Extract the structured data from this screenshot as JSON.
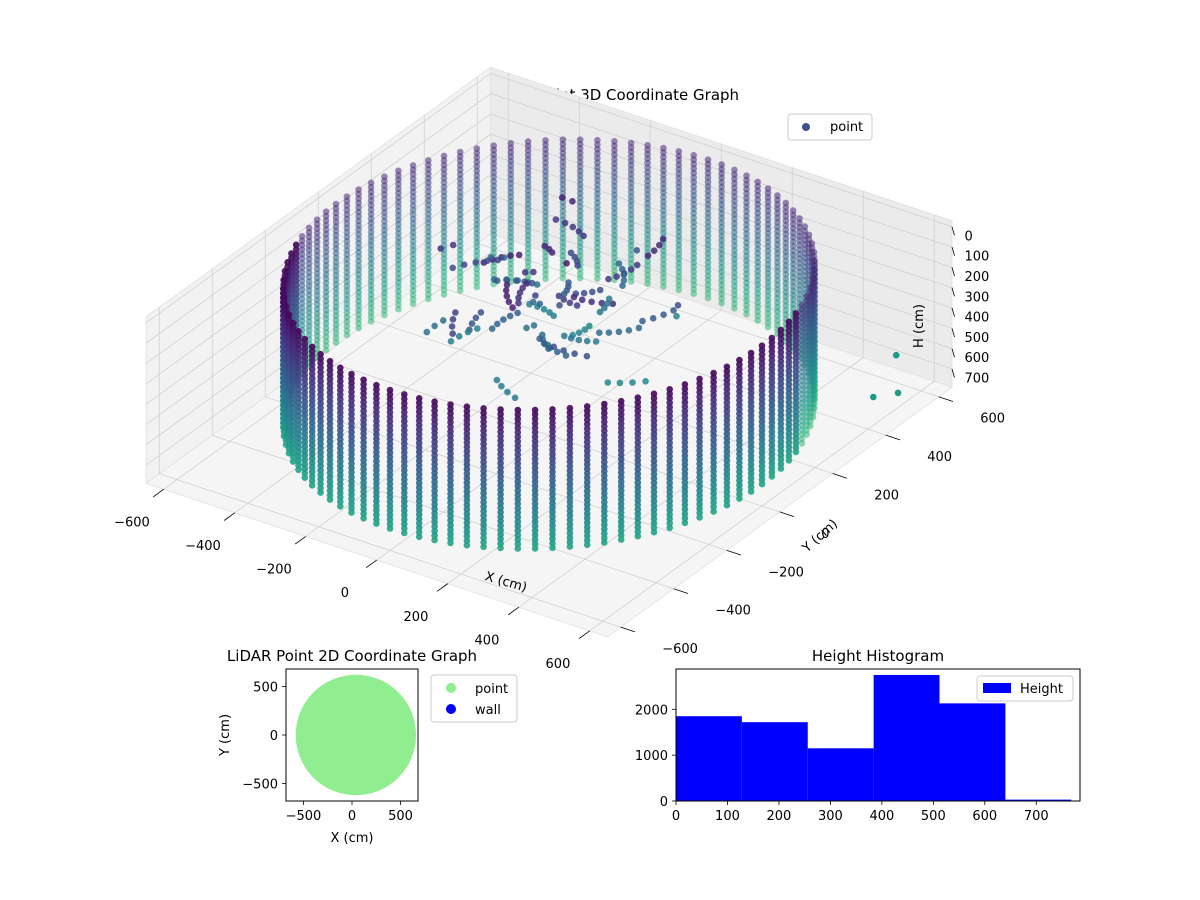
{
  "chart_data": [
    {
      "type": "scatter",
      "projection": "3d",
      "title": "LiDAR Point 3D Coordinate Graph",
      "xlabel": "X (cm)",
      "ylabel": "Y (cm)",
      "zlabel": "H (cm)",
      "xticks": [
        "−600",
        "−400",
        "−200",
        "0",
        "200",
        "400",
        "600"
      ],
      "yticks": [
        "−600",
        "−400",
        "−200",
        "0",
        "200",
        "400",
        "600"
      ],
      "zticks": [
        "0",
        "100",
        "200",
        "300",
        "400",
        "500",
        "600",
        "700"
      ],
      "xlim": [
        -650,
        650
      ],
      "ylim": [
        -650,
        650
      ],
      "zlim": [
        760,
        0
      ],
      "z_inverted": true,
      "grid": true,
      "legend": {
        "position": "upper right",
        "entries": [
          {
            "label": "point",
            "color": "#3b528b"
          }
        ]
      },
      "colormap": "viridis",
      "series": [
        {
          "name": "point",
          "shape": "cylindrical wall",
          "radius_approx": 600,
          "height_range": [
            0,
            700
          ]
        }
      ],
      "outliers": [
        {
          "x": 600,
          "y": 420,
          "z": 650
        },
        {
          "x": 560,
          "y": 560,
          "z": 600
        },
        {
          "x": 610,
          "y": 500,
          "z": 700
        }
      ]
    },
    {
      "type": "scatter",
      "title": "LiDAR Point 2D Coordinate Graph",
      "xlabel": "X (cm)",
      "ylabel": "Y (cm)",
      "xticks": [
        "−500",
        "0",
        "500"
      ],
      "yticks": [
        "−500",
        "0",
        "500"
      ],
      "xlim": [
        -680,
        680
      ],
      "ylim": [
        -680,
        680
      ],
      "legend": {
        "position": "outside right",
        "entries": [
          {
            "label": "point",
            "color": "#90ee90"
          },
          {
            "label": "wall",
            "color": "#0000ff"
          }
        ]
      },
      "series": [
        {
          "name": "point",
          "color": "#90ee90",
          "shape": "filled disk",
          "radius_approx": 620
        }
      ]
    },
    {
      "type": "bar",
      "subtype": "histogram",
      "title": "Height Histogram",
      "xticks": [
        "0",
        "100",
        "200",
        "300",
        "400",
        "500",
        "600",
        "700"
      ],
      "yticks": [
        "0",
        "1000",
        "2000"
      ],
      "xlim": [
        0,
        785
      ],
      "ylim": [
        0,
        2880
      ],
      "bin_edges": [
        0,
        128,
        256,
        384,
        512,
        640,
        768
      ],
      "values": [
        1850,
        1720,
        1150,
        2750,
        2130,
        30
      ],
      "color": "#0000ff",
      "legend": {
        "position": "upper right",
        "entries": [
          {
            "label": "Height",
            "color": "#0000ff"
          }
        ]
      }
    }
  ]
}
